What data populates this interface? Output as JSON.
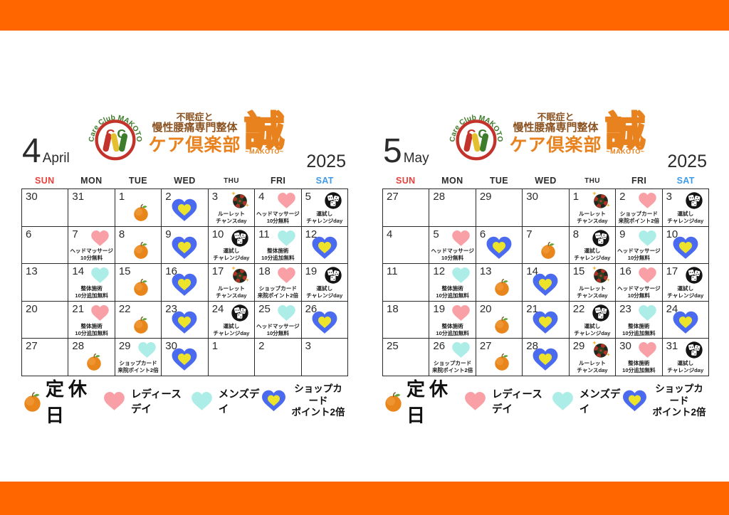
{
  "colors": {
    "accent_orange": "#FF6600",
    "sunday_red": "#E8413C",
    "saturday_blue": "#3D9BEA",
    "adjacent_gray": "#C9C9C9",
    "text_dark": "#2B2B2B",
    "ladies_pink": "#F9A0A7",
    "mens_teal": "#ACEDE7",
    "shopcard_blue": "#4A6BEF",
    "shopcard_yellow": "#EDE32B",
    "logo_orange": "#E8821E",
    "logo_brown": "#8A5220"
  },
  "logo": {
    "arc": "Care Club MAKOTO",
    "line1": "不眠症と",
    "line2": "慢性腰痛専門整体",
    "line3": "ケア倶楽部",
    "kanji": "誠",
    "sub": "~MAKOTO~"
  },
  "day_headers": [
    {
      "label": "SUN",
      "tone": "sun"
    },
    {
      "label": "MON",
      "tone": "n"
    },
    {
      "label": "TUE",
      "tone": "n"
    },
    {
      "label": "WED",
      "tone": "n"
    },
    {
      "label": "THU",
      "tone": "n"
    },
    {
      "label": "FRI",
      "tone": "n"
    },
    {
      "label": "SAT",
      "tone": "sat"
    }
  ],
  "legend": {
    "items": [
      {
        "icon": "orange",
        "lines": [
          "定休日"
        ]
      },
      {
        "icon": "pink-heart",
        "lines": [
          "レディースデイ"
        ]
      },
      {
        "icon": "teal-heart",
        "lines": [
          "メンズデイ"
        ]
      },
      {
        "icon": "shop-heart",
        "lines": [
          "ショップカード",
          "ポイント2倍"
        ]
      }
    ]
  },
  "months": [
    {
      "number": "4",
      "name": "April",
      "year": "2025",
      "weeks": [
        [
          {
            "day": "30",
            "tone": "out"
          },
          {
            "day": "31",
            "tone": "out"
          },
          {
            "day": "1",
            "tone": "n",
            "icon": "orange"
          },
          {
            "day": "2",
            "tone": "n",
            "icon": "shop-heart"
          },
          {
            "day": "3",
            "tone": "n",
            "icon": "roulette",
            "label": [
              "ルーレット",
              "チャンスday"
            ]
          },
          {
            "day": "4",
            "tone": "n",
            "icon": "pink-heart",
            "label": [
              "ヘッドマッサージ",
              "10分無料"
            ]
          },
          {
            "day": "5",
            "tone": "sat",
            "icon": "dice",
            "label": [
              "運試し",
              "チャレンジday"
            ]
          }
        ],
        [
          {
            "day": "6",
            "tone": "sun"
          },
          {
            "day": "7",
            "tone": "n",
            "icon": "pink-heart",
            "label": [
              "ヘッドマッサージ",
              "10分無料"
            ]
          },
          {
            "day": "8",
            "tone": "n",
            "icon": "orange"
          },
          {
            "day": "9",
            "tone": "n",
            "icon": "shop-heart"
          },
          {
            "day": "10",
            "tone": "n",
            "icon": "dice",
            "label": [
              "運試し",
              "チャレンジday"
            ]
          },
          {
            "day": "11",
            "tone": "n",
            "icon": "teal-heart",
            "label": [
              "整体施術",
              "10分追加無料"
            ]
          },
          {
            "day": "12",
            "tone": "sat",
            "icon": "shop-heart"
          }
        ],
        [
          {
            "day": "13",
            "tone": "sun"
          },
          {
            "day": "14",
            "tone": "n",
            "icon": "teal-heart",
            "label": [
              "整体施術",
              "10分追加無料"
            ]
          },
          {
            "day": "15",
            "tone": "n",
            "icon": "orange"
          },
          {
            "day": "16",
            "tone": "n",
            "icon": "shop-heart"
          },
          {
            "day": "17",
            "tone": "n",
            "icon": "roulette",
            "label": [
              "ルーレット",
              "チャンスday"
            ]
          },
          {
            "day": "18",
            "tone": "n",
            "icon": "pink-heart",
            "label": [
              "ショップカード",
              "来院ポイント2倍"
            ]
          },
          {
            "day": "19",
            "tone": "sat",
            "icon": "dice",
            "label": [
              "運試し",
              "チャレンジday"
            ]
          }
        ],
        [
          {
            "day": "20",
            "tone": "sun"
          },
          {
            "day": "21",
            "tone": "n",
            "icon": "pink-heart",
            "label": [
              "整体施術",
              "10分追加無料"
            ]
          },
          {
            "day": "22",
            "tone": "n",
            "icon": "orange"
          },
          {
            "day": "23",
            "tone": "n",
            "icon": "shop-heart"
          },
          {
            "day": "24",
            "tone": "n",
            "icon": "dice",
            "label": [
              "運試し",
              "チャレンジday"
            ]
          },
          {
            "day": "25",
            "tone": "n",
            "icon": "teal-heart",
            "label": [
              "ヘッドマッサージ",
              "10分無料"
            ]
          },
          {
            "day": "26",
            "tone": "sat",
            "icon": "shop-heart"
          }
        ],
        [
          {
            "day": "27",
            "tone": "sun"
          },
          {
            "day": "28",
            "tone": "n",
            "icon": "orange"
          },
          {
            "day": "29",
            "tone": "hol",
            "icon": "teal-heart",
            "label": [
              "ショップカード",
              "来院ポイント2倍"
            ]
          },
          {
            "day": "30",
            "tone": "n",
            "icon": "shop-heart"
          },
          {
            "day": "1",
            "tone": "out"
          },
          {
            "day": "2",
            "tone": "out"
          },
          {
            "day": "3",
            "tone": "out"
          }
        ]
      ]
    },
    {
      "number": "5",
      "name": "May",
      "year": "2025",
      "weeks": [
        [
          {
            "day": "27",
            "tone": "out"
          },
          {
            "day": "28",
            "tone": "out"
          },
          {
            "day": "29",
            "tone": "out"
          },
          {
            "day": "30",
            "tone": "out"
          },
          {
            "day": "1",
            "tone": "n",
            "icon": "roulette",
            "label": [
              "ルーレット",
              "チャンスday"
            ]
          },
          {
            "day": "2",
            "tone": "n",
            "icon": "pink-heart",
            "label": [
              "ショップカード",
              "来院ポイント2倍"
            ]
          },
          {
            "day": "3",
            "tone": "hol",
            "icon": "dice",
            "label": [
              "運試し",
              "チャレンジday"
            ]
          }
        ],
        [
          {
            "day": "4",
            "tone": "sun"
          },
          {
            "day": "5",
            "tone": "hol",
            "icon": "pink-heart",
            "label": [
              "ヘッドマッサージ",
              "10分無料"
            ]
          },
          {
            "day": "6",
            "tone": "hol",
            "icon": "shop-heart"
          },
          {
            "day": "7",
            "tone": "n",
            "icon": "orange"
          },
          {
            "day": "8",
            "tone": "n",
            "icon": "dice",
            "label": [
              "運試し",
              "チャレンジday"
            ]
          },
          {
            "day": "9",
            "tone": "n",
            "icon": "teal-heart",
            "label": [
              "ヘッドマッサージ",
              "10分無料"
            ]
          },
          {
            "day": "10",
            "tone": "sat",
            "icon": "shop-heart"
          }
        ],
        [
          {
            "day": "11",
            "tone": "sun"
          },
          {
            "day": "12",
            "tone": "n",
            "icon": "teal-heart",
            "label": [
              "整体施術",
              "10分追加無料"
            ]
          },
          {
            "day": "13",
            "tone": "n",
            "icon": "orange"
          },
          {
            "day": "14",
            "tone": "n",
            "icon": "shop-heart"
          },
          {
            "day": "15",
            "tone": "n",
            "icon": "roulette",
            "label": [
              "ルーレット",
              "チャンスday"
            ]
          },
          {
            "day": "16",
            "tone": "n",
            "icon": "pink-heart",
            "label": [
              "ヘッドマッサージ",
              "10分無料"
            ]
          },
          {
            "day": "17",
            "tone": "sat",
            "icon": "dice",
            "label": [
              "運試し",
              "チャレンジday"
            ]
          }
        ],
        [
          {
            "day": "18",
            "tone": "sun"
          },
          {
            "day": "19",
            "tone": "n",
            "icon": "pink-heart",
            "label": [
              "整体施術",
              "10分追加無料"
            ]
          },
          {
            "day": "20",
            "tone": "n",
            "icon": "orange"
          },
          {
            "day": "21",
            "tone": "n",
            "icon": "shop-heart"
          },
          {
            "day": "22",
            "tone": "n",
            "icon": "dice",
            "label": [
              "運試し",
              "チャレンジday"
            ]
          },
          {
            "day": "23",
            "tone": "n",
            "icon": "teal-heart",
            "label": [
              "整体施術",
              "10分追加無料"
            ]
          },
          {
            "day": "24",
            "tone": "sat",
            "icon": "shop-heart"
          }
        ],
        [
          {
            "day": "25",
            "tone": "sun"
          },
          {
            "day": "26",
            "tone": "n",
            "icon": "teal-heart",
            "label": [
              "ショップカード",
              "来院ポイント2倍"
            ]
          },
          {
            "day": "27",
            "tone": "n",
            "icon": "orange"
          },
          {
            "day": "28",
            "tone": "n",
            "icon": "shop-heart"
          },
          {
            "day": "29",
            "tone": "n",
            "icon": "roulette",
            "label": [
              "ルーレット",
              "チャンスday"
            ]
          },
          {
            "day": "30",
            "tone": "n",
            "icon": "pink-heart",
            "label": [
              "整体施術",
              "10分追加無料"
            ]
          },
          {
            "day": "31",
            "tone": "sat",
            "icon": "dice",
            "label": [
              "運試し",
              "チャレンジday"
            ]
          }
        ]
      ]
    }
  ]
}
